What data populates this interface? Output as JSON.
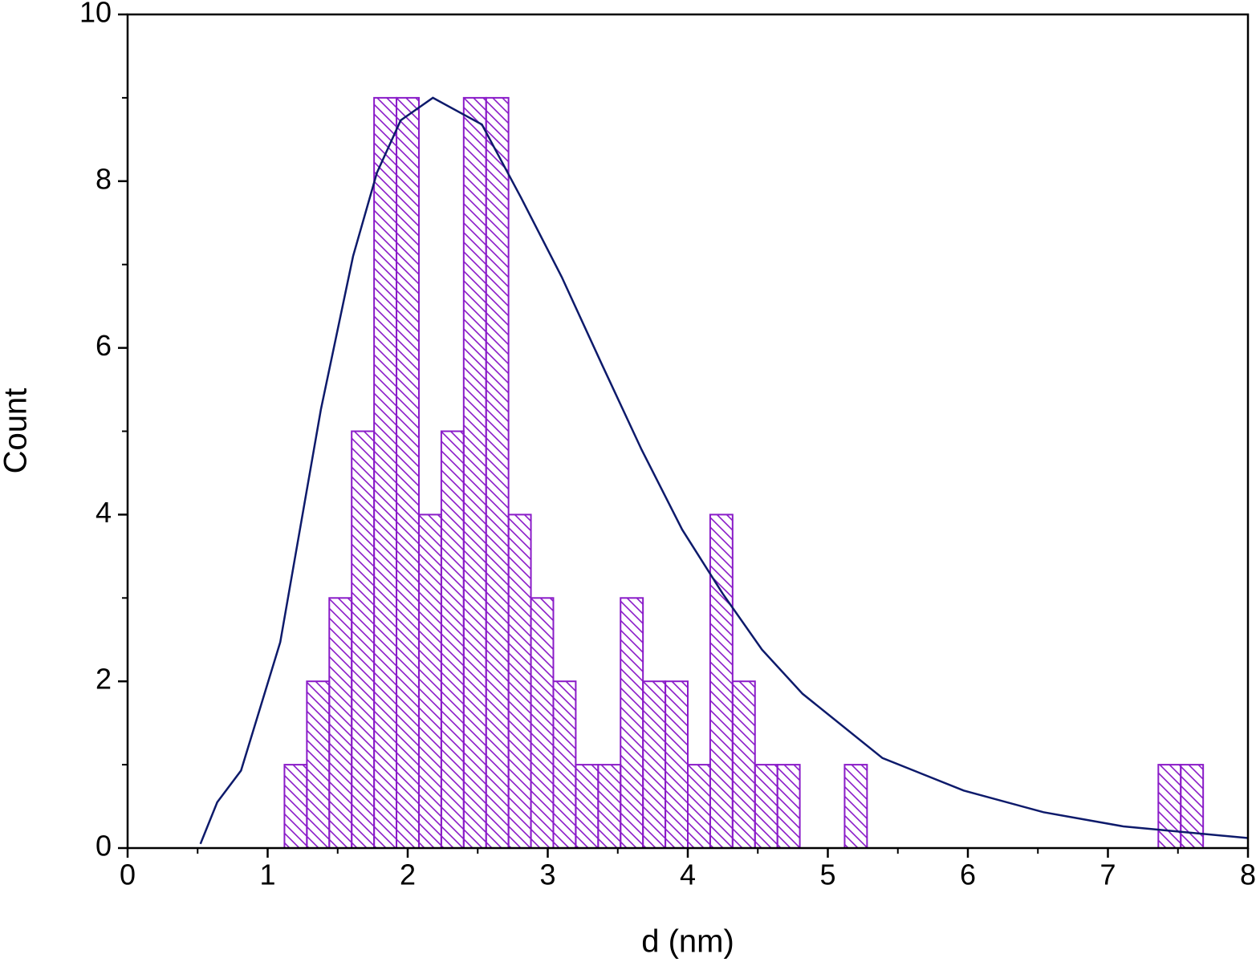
{
  "chart_data": {
    "type": "histogram",
    "xlabel": "d (nm)",
    "ylabel": "Count",
    "bins": [
      1.12,
      1.28,
      1.44,
      1.6,
      1.76,
      1.92,
      2.08,
      2.24,
      2.4,
      2.56,
      2.72,
      2.88,
      3.04,
      3.2,
      3.36,
      3.52,
      3.68,
      3.84,
      4.0,
      4.16,
      4.32,
      4.48,
      4.64,
      4.8,
      4.96,
      5.12,
      5.28,
      5.44,
      5.6,
      5.76,
      5.92,
      6.08,
      6.24,
      6.4,
      6.56,
      6.72,
      6.88,
      7.04,
      7.2,
      7.36,
      7.52,
      7.68
    ],
    "counts": [
      1,
      2,
      3,
      5,
      9,
      9,
      4,
      5,
      9,
      9,
      4,
      3,
      2,
      1,
      1,
      3,
      2,
      2,
      1,
      4,
      2,
      1,
      1,
      0,
      0,
      1,
      0,
      0,
      0,
      0,
      0,
      0,
      0,
      0,
      0,
      0,
      0,
      0,
      0,
      1,
      1
    ],
    "color": "#8a1cc8",
    "fit": {
      "color": "#0d1a6b",
      "x": [
        0.52,
        0.64,
        0.81,
        1.09,
        1.38,
        1.61,
        1.78,
        1.95,
        2.18,
        2.53,
        2.81,
        3.1,
        3.39,
        3.67,
        3.96,
        4.25,
        4.53,
        4.82,
        5.39,
        5.97,
        6.54,
        7.11,
        8.0
      ],
      "y": [
        0.05,
        0.55,
        0.93,
        2.47,
        5.26,
        7.1,
        8.1,
        8.73,
        9.0,
        8.68,
        7.8,
        6.85,
        5.79,
        4.78,
        3.82,
        3.05,
        2.38,
        1.85,
        1.08,
        0.69,
        0.43,
        0.26,
        0.12
      ]
    },
    "xlim": [
      0,
      8
    ],
    "ylim": [
      0,
      10
    ],
    "xticks": [
      0,
      1,
      2,
      3,
      4,
      5,
      6,
      7,
      8
    ],
    "yticks": [
      0,
      2,
      4,
      6,
      8,
      10
    ],
    "xminor_ticks": [
      0.5,
      1.5,
      2.5,
      3.5,
      4.5,
      5.5,
      6.5,
      7.5
    ],
    "yminor_ticks": [
      1,
      3,
      5,
      7,
      9
    ]
  }
}
